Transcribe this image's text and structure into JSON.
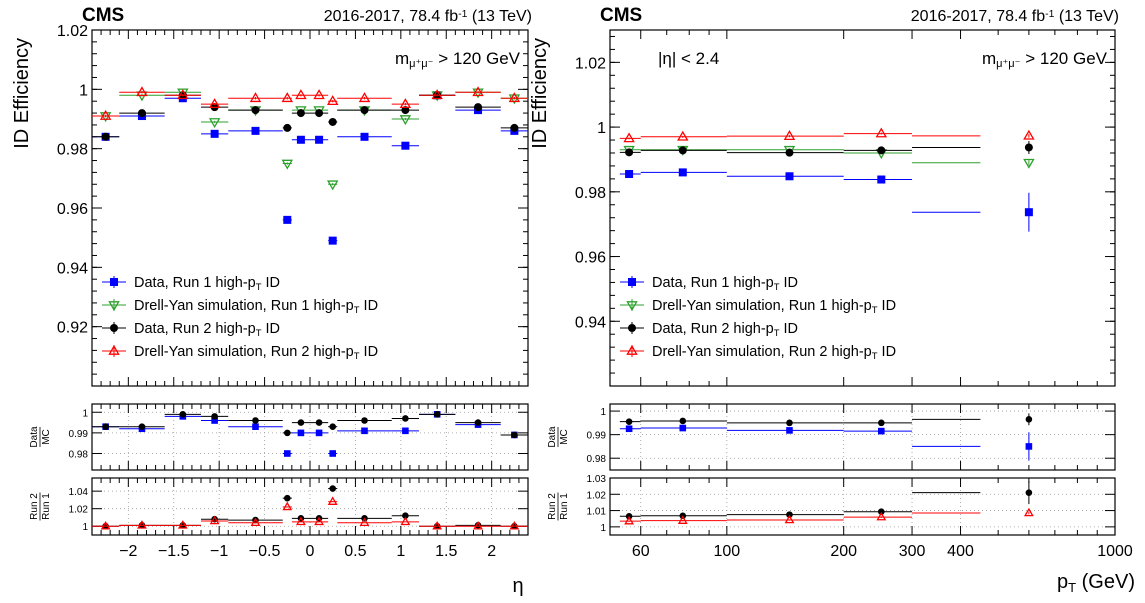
{
  "colors": {
    "data_run1": "#0000ff",
    "dy_run1": "#2ca02c",
    "data_run2": "#000000",
    "dy_run2": "#ff0000"
  },
  "chart_data": [
    {
      "type": "scatter",
      "experiment": "CMS",
      "lumi_text": {
        "pre": "2016-2017, 78.4 fb",
        "sup": "-1",
        "post": " (13 TeV)"
      },
      "cut_text": {
        "pre": "m",
        "sub": "μ⁺μ⁻",
        "post": " > 120 GeV"
      },
      "ylabel": "ID Efficiency",
      "xlabel": "η",
      "xlim": [
        -2.4,
        2.4
      ],
      "ylim": [
        0.9,
        1.02
      ],
      "yticks": [
        "0.92",
        "0.94",
        "0.96",
        "0.98",
        "1",
        "1.02"
      ],
      "xticks": [
        "−2",
        "−1.5",
        "−1",
        "−0.5",
        "0",
        "0.5",
        "1",
        "1.5",
        "2"
      ],
      "bins": [
        -2.4,
        -2.1,
        -1.6,
        -1.2,
        -0.9,
        -0.3,
        -0.2,
        0.0,
        0.2,
        0.3,
        0.9,
        1.2,
        1.6,
        2.1,
        2.4
      ],
      "legend": {
        "placement": "bottom-left",
        "entries": [
          {
            "pre": "Data, Run 1 high-p",
            "sub": "T",
            "post": " ID",
            "series": "data_run1"
          },
          {
            "pre": "Drell-Yan simulation, Run 1 high-p",
            "sub": "T",
            "post": " ID",
            "series": "dy_run1"
          },
          {
            "pre": "Data, Run 2 high-p",
            "sub": "T",
            "post": " ID",
            "series": "data_run2"
          },
          {
            "pre": "Drell-Yan simulation, Run 2 high-p",
            "sub": "T",
            "post": " ID",
            "series": "dy_run2"
          }
        ]
      },
      "series": [
        {
          "key": "data_run1",
          "marker": "square",
          "values": [
            0.984,
            0.991,
            0.997,
            0.985,
            0.986,
            0.956,
            0.983,
            0.983,
            0.949,
            0.984,
            0.981,
            0.998,
            0.993,
            0.986
          ]
        },
        {
          "key": "dy_run1",
          "marker": "triangle-down",
          "values": [
            0.991,
            0.998,
            0.999,
            0.989,
            0.993,
            0.975,
            0.993,
            0.993,
            0.968,
            0.993,
            0.99,
            0.998,
            0.999,
            0.997
          ]
        },
        {
          "key": "data_run2",
          "marker": "circle",
          "values": [
            0.984,
            0.992,
            0.998,
            0.994,
            0.993,
            0.987,
            0.992,
            0.992,
            0.989,
            0.993,
            0.993,
            0.998,
            0.994,
            0.987
          ]
        },
        {
          "key": "dy_run2",
          "marker": "triangle-up",
          "values": [
            0.991,
            0.999,
            0.998,
            0.995,
            0.997,
            0.997,
            0.998,
            0.998,
            0.996,
            0.997,
            0.995,
            0.998,
            0.999,
            0.997
          ]
        }
      ],
      "ratio1": {
        "label_top": "Data",
        "label_bottom": "MC",
        "ylim": [
          0.972,
          1.004
        ],
        "yticks": [
          "0.98",
          "0.99",
          "1"
        ],
        "series": [
          {
            "key": "data_run1",
            "values": [
              0.993,
              0.992,
              0.998,
              0.996,
              0.993,
              0.98,
              0.99,
              0.99,
              0.98,
              0.991,
              0.991,
              0.999,
              0.994,
              0.989
            ]
          },
          {
            "key": "data_run2",
            "values": [
              0.993,
              0.993,
              0.999,
              0.998,
              0.996,
              0.99,
              0.995,
              0.995,
              0.993,
              0.996,
              0.997,
              0.999,
              0.995,
              0.989
            ]
          }
        ]
      },
      "ratio2": {
        "label_top": "Run 2",
        "label_bottom": "Run 1",
        "ylim": [
          0.99,
          1.055
        ],
        "yticks": [
          "1",
          "1.02",
          "1.04"
        ],
        "series": [
          {
            "key": "data_run2",
            "values": [
              1.0,
              1.001,
              1.001,
              1.008,
              1.007,
              1.032,
              1.009,
              1.009,
              1.043,
              1.009,
              1.012,
              1.0,
              1.001,
              1.0
            ]
          },
          {
            "key": "dy_run2",
            "values": [
              1.0,
              1.001,
              1.001,
              1.006,
              1.004,
              1.022,
              1.005,
              1.005,
              1.028,
              1.004,
              1.005,
              1.0,
              1.0,
              1.0
            ]
          }
        ]
      }
    },
    {
      "type": "scatter",
      "experiment": "CMS",
      "lumi_text": {
        "pre": "2016-2017, 78.4 fb",
        "sup": "-1",
        "post": " (13 TeV)"
      },
      "cut_text": {
        "pre": "m",
        "sub": "μ⁺μ⁻",
        "post": " > 120 GeV"
      },
      "eta_text": "|η| < 2.4",
      "ylabel": "ID Efficiency",
      "xlabel": {
        "pre": "p",
        "sub": "T",
        "post": " (GeV)"
      },
      "xscale": "log",
      "xlim": [
        50,
        1000
      ],
      "ylim": [
        0.92,
        1.03
      ],
      "yticks": [
        "0.94",
        "0.96",
        "0.98",
        "1",
        "1.02"
      ],
      "xticks": [
        {
          "v": 60,
          "t": "60"
        },
        {
          "v": 100,
          "t": "100"
        },
        {
          "v": 200,
          "t": "200"
        },
        {
          "v": 300,
          "t": "300"
        },
        {
          "v": 400,
          "t": "400"
        },
        {
          "v": 1000,
          "t": "1000"
        }
      ],
      "bins": [
        53,
        60,
        100,
        200,
        300,
        450,
        1000
      ],
      "legend": {
        "placement": "bottom-left",
        "entries": [
          {
            "pre": "Data, Run 1 high-p",
            "sub": "T",
            "post": " ID",
            "series": "data_run1"
          },
          {
            "pre": "Drell-Yan simulation, Run 1 high-p",
            "sub": "T",
            "post": " ID",
            "series": "dy_run1"
          },
          {
            "pre": "Data, Run 2 high-p",
            "sub": "T",
            "post": " ID",
            "series": "data_run2"
          },
          {
            "pre": "Drell-Yan simulation, Run 2 high-p",
            "sub": "T",
            "post": " ID",
            "series": "dy_run2"
          }
        ]
      },
      "series": [
        {
          "key": "data_run1",
          "marker": "square",
          "x": [
            56,
            77,
            145,
            250,
            600
          ],
          "values": [
            0.9855,
            0.986,
            0.9848,
            0.9838,
            0.9737
          ],
          "err": [
            0.0005,
            0.0005,
            0.0005,
            0.0006,
            0.006
          ]
        },
        {
          "key": "dy_run1",
          "marker": "triangle-down",
          "x": [
            56,
            77,
            145,
            250,
            600
          ],
          "values": [
            0.993,
            0.993,
            0.993,
            0.992,
            0.989
          ],
          "err": [
            0.0003,
            0.0003,
            0.0003,
            0.0003,
            0.0008
          ]
        },
        {
          "key": "data_run2",
          "marker": "circle",
          "x": [
            56,
            77,
            145,
            250,
            600
          ],
          "values": [
            0.9922,
            0.9928,
            0.9921,
            0.9928,
            0.9937
          ],
          "err": [
            0.0004,
            0.0004,
            0.0004,
            0.0005,
            0.002
          ]
        },
        {
          "key": "dy_run2",
          "marker": "triangle-up",
          "x": [
            56,
            77,
            145,
            250,
            600
          ],
          "values": [
            0.9965,
            0.997,
            0.9972,
            0.998,
            0.9973
          ],
          "err": [
            0.0003,
            0.0003,
            0.0003,
            0.0003,
            0.0006
          ]
        }
      ],
      "ratio1": {
        "label_top": "Data",
        "label_bottom": "MC",
        "ylim": [
          0.975,
          1.003
        ],
        "yticks": [
          "0.98",
          "0.99",
          "1"
        ],
        "series": [
          {
            "key": "data_run1",
            "values": [
              0.9925,
              0.9928,
              0.9918,
              0.9915,
              0.985
            ],
            "err": [
              0.0006,
              0.0006,
              0.0006,
              0.0007,
              0.006
            ]
          },
          {
            "key": "data_run2",
            "values": [
              0.9955,
              0.9958,
              0.995,
              0.995,
              0.9965
            ],
            "err": [
              0.0005,
              0.0005,
              0.0005,
              0.0005,
              0.0025
            ]
          }
        ]
      },
      "ratio2": {
        "label_top": "Run 2",
        "label_bottom": "Run 1",
        "ylim": [
          0.995,
          1.03
        ],
        "yticks": [
          "1",
          "1.01",
          "1.02",
          "1.03"
        ],
        "series": [
          {
            "key": "data_run2",
            "values": [
              1.0065,
              1.0068,
              1.0075,
              1.0093,
              1.021
            ],
            "err": [
              0.0006,
              0.0006,
              0.0006,
              0.0007,
              0.007
            ]
          },
          {
            "key": "dy_run2",
            "values": [
              1.0035,
              1.0038,
              1.0042,
              1.006,
              1.0085
            ],
            "err": [
              0.0004,
              0.0004,
              0.0004,
              0.0005,
              0.0008
            ]
          }
        ]
      }
    }
  ]
}
